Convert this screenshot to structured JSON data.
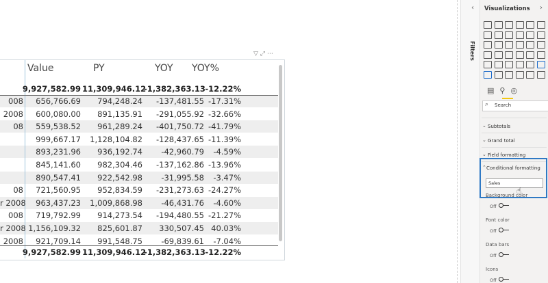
{
  "table": {
    "columns": [
      "Value",
      "PY",
      "YOY",
      "YOY%"
    ],
    "total": [
      "9,927,582.99",
      "11,309,946.12",
      "-1,382,363.13",
      "-12.22%"
    ],
    "rows": [
      {
        "label": "008",
        "cells": [
          "656,766.69",
          "794,248.24",
          "-137,481.55",
          "-17.31%"
        ]
      },
      {
        "label": "2008",
        "cells": [
          "600,080.00",
          "891,135.91",
          "-291,055.92",
          "-32.66%"
        ]
      },
      {
        "label": "08",
        "cells": [
          "559,538.52",
          "961,289.24",
          "-401,750.72",
          "-41.79%"
        ]
      },
      {
        "label": null,
        "cells": [
          "999,667.17",
          "1,128,104.82",
          "-128,437.65",
          "-11.39%"
        ]
      },
      {
        "label": null,
        "cells": [
          "893,231.96",
          "936,192.74",
          "-42,960.79",
          "-4.59%"
        ]
      },
      {
        "label": null,
        "cells": [
          "845,141.60",
          "982,304.46",
          "-137,162.86",
          "-13.96%"
        ]
      },
      {
        "label": null,
        "cells": [
          "890,547.41",
          "922,542.98",
          "-31,995.58",
          "-3.47%"
        ]
      },
      {
        "label": "08",
        "cells": [
          "721,560.95",
          "952,834.59",
          "-231,273.63",
          "-24.27%"
        ]
      },
      {
        "label": "r 2008",
        "cells": [
          "963,437.23",
          "1,009,868.98",
          "-46,431.76",
          "-4.60%"
        ]
      },
      {
        "label": "008",
        "cells": [
          "719,792.99",
          "914,273.54",
          "-194,480.55",
          "-21.27%"
        ]
      },
      {
        "label": "r 2008",
        "cells": [
          "1,156,109.32",
          "825,601.87",
          "330,507.45",
          "40.03%"
        ]
      },
      {
        "label": "2008",
        "cells": [
          "921,709.14",
          "991,548.75",
          "-69,839.61",
          "-7.04%"
        ]
      }
    ],
    "footer": [
      "9,927,582.99",
      "11,309,946.12",
      "-1,382,363.13",
      "-12.22%"
    ]
  },
  "pane": {
    "filters": "Filters",
    "title": "Visualizations",
    "search": "Search",
    "sections": [
      "Subtotals",
      "Grand total",
      "Field formatting"
    ],
    "conditional": {
      "title": "Conditional formatting",
      "field": "Sales",
      "options": [
        {
          "label": "Background color",
          "state": "Off"
        },
        {
          "label": "Font color",
          "state": "Off"
        },
        {
          "label": "Data bars",
          "state": "Off"
        },
        {
          "label": "Icons",
          "state": "Off"
        }
      ]
    }
  }
}
